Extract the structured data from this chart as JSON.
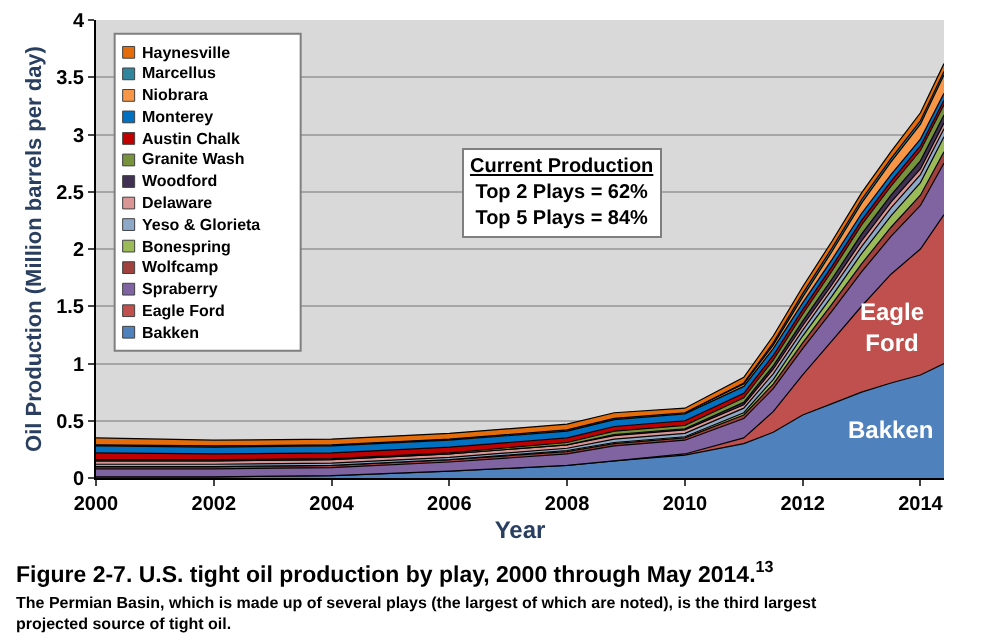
{
  "chart_data": {
    "type": "area",
    "stacked": true,
    "title": "Figure 2-7. U.S. tight oil production by play, 2000 through May 2014.$^{13}$",
    "subtitle": "The Permian Basin, which is made up of several plays (the largest of which are noted), is the third largest projected source of tight oil.",
    "xlabel": "Year",
    "ylabel": "Oil Production (Million barrels per day)",
    "x": [
      2000,
      2002,
      2004,
      2006,
      2008,
      2008.8,
      2010,
      2011,
      2011.5,
      2012,
      2012.5,
      2013,
      2013.5,
      2014,
      2014.4
    ],
    "series": [
      {
        "name": "Bakken",
        "color": "#4f81bd",
        "values": [
          0.01,
          0.01,
          0.02,
          0.06,
          0.11,
          0.15,
          0.2,
          0.3,
          0.4,
          0.55,
          0.65,
          0.75,
          0.83,
          0.9,
          1.0
        ]
      },
      {
        "name": "Eagle Ford",
        "color": "#c0504d",
        "values": [
          0,
          0,
          0,
          0,
          0,
          0,
          0.01,
          0.05,
          0.18,
          0.35,
          0.55,
          0.75,
          0.95,
          1.1,
          1.3
        ]
      },
      {
        "name": "Spraberry",
        "color": "#8064a2",
        "values": [
          0.07,
          0.07,
          0.07,
          0.08,
          0.1,
          0.13,
          0.12,
          0.17,
          0.2,
          0.23,
          0.26,
          0.3,
          0.33,
          0.38,
          0.45
        ]
      },
      {
        "name": "Wolfcamp",
        "color": "#a0413e",
        "values": [
          0.02,
          0.02,
          0.02,
          0.02,
          0.02,
          0.02,
          0.02,
          0.03,
          0.04,
          0.05,
          0.06,
          0.07,
          0.08,
          0.09,
          0.1
        ]
      },
      {
        "name": "Bonespring",
        "color": "#9bbb59",
        "values": [
          0,
          0,
          0,
          0,
          0.01,
          0.01,
          0.01,
          0.02,
          0.04,
          0.06,
          0.07,
          0.09,
          0.1,
          0.11,
          0.13
        ]
      },
      {
        "name": "Yeso & Glorieta",
        "color": "#8ea9c8",
        "values": [
          0.02,
          0.02,
          0.02,
          0.02,
          0.02,
          0.03,
          0.03,
          0.04,
          0.05,
          0.05,
          0.06,
          0.06,
          0.07,
          0.07,
          0.07
        ]
      },
      {
        "name": "Delaware",
        "color": "#d99694",
        "values": [
          0.03,
          0.03,
          0.03,
          0.03,
          0.03,
          0.03,
          0.03,
          0.03,
          0.04,
          0.04,
          0.04,
          0.05,
          0.05,
          0.05,
          0.05
        ]
      },
      {
        "name": "Woodford",
        "color": "#403152",
        "values": [
          0,
          0,
          0,
          0,
          0,
          0.01,
          0.01,
          0.02,
          0.03,
          0.04,
          0.05,
          0.06,
          0.06,
          0.07,
          0.07
        ]
      },
      {
        "name": "Granite Wash",
        "color": "#77933c",
        "values": [
          0.01,
          0.01,
          0.01,
          0.01,
          0.02,
          0.03,
          0.03,
          0.04,
          0.05,
          0.06,
          0.07,
          0.08,
          0.08,
          0.09,
          0.09
        ]
      },
      {
        "name": "Austin Chalk",
        "color": "#c00000",
        "values": [
          0.06,
          0.05,
          0.05,
          0.05,
          0.04,
          0.04,
          0.04,
          0.04,
          0.04,
          0.04,
          0.04,
          0.04,
          0.04,
          0.04,
          0.04
        ]
      },
      {
        "name": "Monterey",
        "color": "#0070c0",
        "values": [
          0.06,
          0.06,
          0.06,
          0.06,
          0.06,
          0.06,
          0.06,
          0.06,
          0.06,
          0.06,
          0.06,
          0.06,
          0.06,
          0.06,
          0.06
        ]
      },
      {
        "name": "Niobrara",
        "color": "#f79646",
        "values": [
          0.01,
          0.01,
          0.01,
          0.01,
          0.01,
          0.01,
          0.01,
          0.02,
          0.03,
          0.05,
          0.07,
          0.09,
          0.11,
          0.13,
          0.16
        ]
      },
      {
        "name": "Marcellus",
        "color": "#31859c",
        "values": [
          0,
          0,
          0,
          0,
          0,
          0,
          0,
          0.01,
          0.02,
          0.03,
          0.03,
          0.03,
          0.03,
          0.03,
          0.03
        ]
      },
      {
        "name": "Haynesville",
        "color": "#e46c0a",
        "values": [
          0.06,
          0.05,
          0.05,
          0.05,
          0.05,
          0.05,
          0.04,
          0.05,
          0.06,
          0.06,
          0.06,
          0.06,
          0.06,
          0.07,
          0.07
        ]
      }
    ],
    "xlim": [
      2000,
      2014.4
    ],
    "xticks": [
      2000,
      2002,
      2004,
      2006,
      2008,
      2010,
      2012,
      2014
    ],
    "ylim": [
      0,
      4
    ],
    "yticks": [
      0,
      0.5,
      1,
      1.5,
      2,
      2.5,
      3,
      3.5,
      4
    ],
    "grid": "y",
    "legend": "top left",
    "annotations": [
      "Current Production\nTop 2 Plays = 62%\nTop 5 Plays = 84%"
    ]
  }
}
